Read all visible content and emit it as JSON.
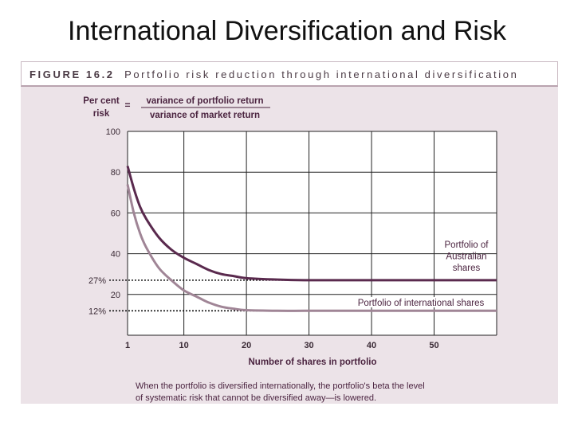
{
  "slide": {
    "title": "International Diversification and Risk"
  },
  "figure": {
    "number": "FIGURE 16.2",
    "caption": "Portfolio risk reduction through international diversification"
  },
  "yaxis": {
    "label_line1": "Per cent",
    "label_line2": "risk",
    "equals": "=",
    "numerator": "variance of portfolio return",
    "denominator": "variance of market return"
  },
  "footnote": {
    "line1": "When the portfolio is diversified internationally, the portfolio's beta    the level",
    "line2": "of systematic risk that cannot be diversified away—is lowered."
  },
  "chart_data": {
    "type": "line",
    "xlabel": "Number of shares in portfolio",
    "xlim": [
      1,
      60
    ],
    "ylim": [
      0,
      100
    ],
    "xticks": [
      1,
      10,
      20,
      30,
      40,
      50
    ],
    "yticks": [
      {
        "value": 100,
        "label": "100"
      },
      {
        "value": 80,
        "label": "80"
      },
      {
        "value": 60,
        "label": "60"
      },
      {
        "value": 40,
        "label": "40"
      },
      {
        "value": 27,
        "label": "27%"
      },
      {
        "value": 20,
        "label": "20"
      },
      {
        "value": 12,
        "label": "12%"
      }
    ],
    "reference_lines": [
      27,
      12
    ],
    "grid": true,
    "series": [
      {
        "name": "Portfolio of Australian shares",
        "label_lines": [
          "Portfolio of",
          "Australian",
          "shares"
        ],
        "color": "#5a2a4e",
        "x": [
          1,
          2,
          3,
          4,
          6,
          8,
          10,
          12,
          14,
          16,
          18,
          20,
          25,
          30,
          40,
          50,
          60
        ],
        "y": [
          83,
          72,
          63,
          57,
          48,
          42,
          38,
          35,
          32,
          30,
          29,
          28,
          27.3,
          27,
          27,
          27,
          27
        ]
      },
      {
        "name": "Portfolio of international shares",
        "label_lines": [
          "Portfolio of international shares"
        ],
        "color": "#a08596",
        "x": [
          1,
          2,
          3,
          4,
          6,
          8,
          10,
          12,
          14,
          16,
          18,
          20,
          25,
          30,
          40,
          50,
          60
        ],
        "y": [
          74,
          60,
          50,
          43,
          33,
          27,
          22,
          19,
          16,
          14,
          13,
          12.3,
          12,
          12,
          12,
          12,
          12
        ]
      }
    ]
  }
}
